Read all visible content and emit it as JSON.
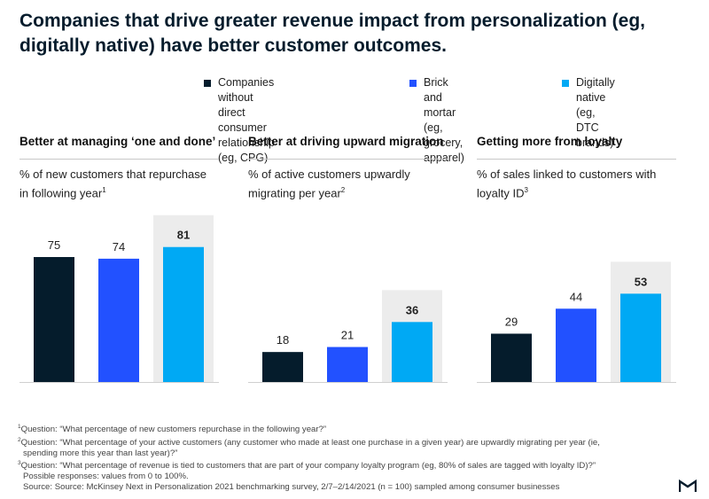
{
  "title": "Companies that drive greater revenue impact from personalization (eg, digitally native) have better customer outcomes.",
  "legend": [
    {
      "line1": "Companies without direct",
      "line2": "consumer relationship (eg, CPG)",
      "color": "#051c2c"
    },
    {
      "line1": "Brick and mortar",
      "line2": "(eg, grocery, apparel)",
      "color": "#2251ff"
    },
    {
      "line1": "Digitally native",
      "line2": "(eg, DTC brands)",
      "color": "#00a9f4"
    }
  ],
  "colors": {
    "highlight_bg": "#ececec",
    "baseline": "#d0d0d0"
  },
  "chart_data": [
    {
      "type": "bar",
      "title": "Better at managing ‘one and done’",
      "subtitle_line1": "% of new customers that repurchase",
      "subtitle_line2": "in following year",
      "footnote_mark": "1",
      "categories": [
        "Companies without direct consumer relationship (eg, CPG)",
        "Brick and mortar (eg, grocery, apparel)",
        "Digitally native (eg, DTC brands)"
      ],
      "values": [
        75,
        74,
        81
      ],
      "highlight_index": 2,
      "ylim": [
        0,
        100
      ]
    },
    {
      "type": "bar",
      "title": "Better at driving upward migration",
      "subtitle_line1": "% of active customers upwardly",
      "subtitle_line2": "migrating per year",
      "footnote_mark": "2",
      "categories": [
        "Companies without direct consumer relationship (eg, CPG)",
        "Brick and mortar (eg, grocery, apparel)",
        "Digitally native (eg, DTC brands)"
      ],
      "values": [
        18,
        21,
        36
      ],
      "highlight_index": 2,
      "ylim": [
        0,
        100
      ]
    },
    {
      "type": "bar",
      "title": "Getting more from loyalty",
      "subtitle_line1": "% of sales linked to customers with",
      "subtitle_line2": "loyalty ID",
      "footnote_mark": "3",
      "categories": [
        "Companies without direct consumer relationship (eg, CPG)",
        "Brick and mortar (eg, grocery, apparel)",
        "Digitally native (eg, DTC brands)"
      ],
      "values": [
        29,
        44,
        53
      ],
      "highlight_index": 2,
      "ylim": [
        0,
        100
      ]
    }
  ],
  "footnotes": {
    "q1_mark": "1",
    "q1": "Question: “What percentage of new customers repurchase in the following year?”",
    "q2_mark": "2",
    "q2_line1": "Question: “What percentage of your active customers (any customer who made at least one purchase in a given year) are upwardly migrating per year (ie,",
    "q2_line2": "spending more this year than last year)?”",
    "q3_mark": "3",
    "q3": "Question: “What percentage of revenue is tied to customers that are part of your company loyalty program (eg, 80% of sales are tagged with loyalty ID)?”",
    "responses": "Possible responses: values from 0 to 100%.",
    "source": "Source: Source: McKinsey Next in Personalization 2021 benchmarking survey, 2/7–2/14/2021 (n = 100) sampled among consumer businesses"
  }
}
